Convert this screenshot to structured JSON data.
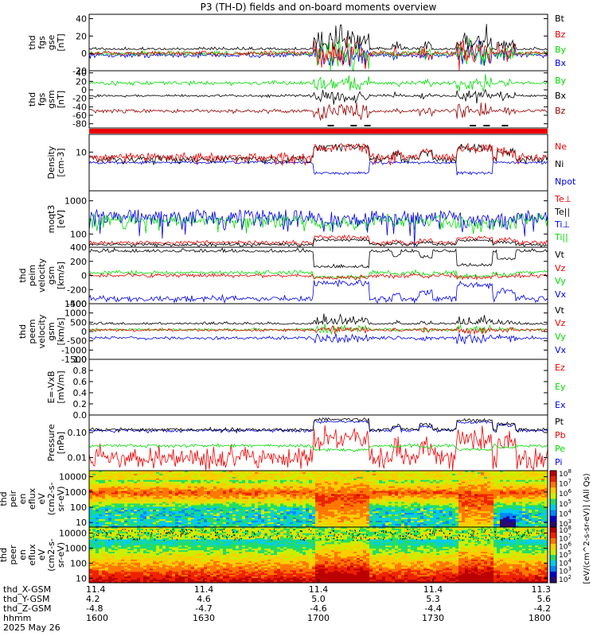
{
  "title": "P3 (TH-D) fields and on-board moments overview",
  "colors": {
    "black": "#000000",
    "red": "#ee0000",
    "green": "#00dd00",
    "blue": "#0000ee",
    "darkred": "#990000"
  },
  "chart_data": [
    {
      "type": "line",
      "ylabel_lines": [
        "thd",
        "fgs",
        "gse",
        "[nT]"
      ],
      "ylim": [
        -20,
        45
      ],
      "yticks": [
        "40",
        "20",
        "0",
        "-20"
      ],
      "legend": [
        {
          "label": "Bt",
          "color": "#000000"
        },
        {
          "label": "Bz",
          "color": "#ee0000"
        },
        {
          "label": "By",
          "color": "#00dd00"
        },
        {
          "label": "Bx",
          "color": "#0000ee"
        }
      ]
    },
    {
      "type": "line",
      "ylabel_lines": [
        "thd",
        "fgs",
        "gsm",
        "[nT]"
      ],
      "ylim": [
        -90,
        45
      ],
      "yticks": [
        "40",
        "20",
        "0",
        "-20",
        "-40",
        "-60",
        "-80"
      ],
      "legend": [
        {
          "label": "By",
          "color": "#00dd00"
        },
        {
          "label": "Bx",
          "color": "#000000"
        },
        {
          "label": "Bz",
          "color": "#990000"
        }
      ]
    },
    {
      "type": "line",
      "ylabel_lines": [
        "Density",
        "[cm-3]"
      ],
      "ylim": [
        0.2,
        60
      ],
      "log": true,
      "yticks": [
        "10"
      ],
      "legend": [
        {
          "label": "Ne",
          "color": "#ee0000"
        },
        {
          "label": "Ni",
          "color": "#000000"
        },
        {
          "label": "Npot",
          "color": "#0000ee"
        }
      ]
    },
    {
      "type": "line",
      "ylabel_lines": [
        "moqt3",
        "[eV]"
      ],
      "ylim": [
        40,
        2000
      ],
      "log": true,
      "yticks": [
        "1000",
        "100"
      ],
      "legend": [
        {
          "label": "Te⊥",
          "color": "#ee0000"
        },
        {
          "label": "Te||",
          "color": "#000000"
        },
        {
          "label": "Ti⊥",
          "color": "#0000ee"
        },
        {
          "label": "Ti||",
          "color": "#00dd00"
        }
      ]
    },
    {
      "type": "line",
      "ylabel_lines": [
        "thd",
        "peim",
        "velocity",
        "gsm",
        "[km/s]"
      ],
      "ylim": [
        -400,
        400
      ],
      "yticks": [
        "400",
        "200",
        "0",
        "-200",
        "-400"
      ],
      "legend": [
        {
          "label": "Vt",
          "color": "#000000"
        },
        {
          "label": "Vz",
          "color": "#ee0000"
        },
        {
          "label": "Vy",
          "color": "#00dd00"
        },
        {
          "label": "Vx",
          "color": "#0000ee"
        }
      ]
    },
    {
      "type": "line",
      "ylabel_lines": [
        "thd",
        "peem",
        "velocity",
        "gsm",
        "[km/s]"
      ],
      "ylim": [
        -1500,
        1500
      ],
      "yticks": [
        "1500",
        "1000",
        "500",
        "0",
        "-500",
        "-1000",
        "-1500"
      ],
      "legend": [
        {
          "label": "Vt",
          "color": "#000000"
        },
        {
          "label": "Vz",
          "color": "#ee0000"
        },
        {
          "label": "Vy",
          "color": "#00dd00"
        },
        {
          "label": "Vx",
          "color": "#0000ee"
        }
      ]
    },
    {
      "type": "line",
      "ylabel_lines": [
        "E=-VxB",
        "[mV/m]"
      ],
      "ylim": [
        0,
        1
      ],
      "yticks": [
        "1.0",
        "0.8",
        "0.6",
        "0.4",
        "0.2",
        "0.0"
      ],
      "legend": [
        {
          "label": "Ez",
          "color": "#ee0000"
        },
        {
          "label": "Ey",
          "color": "#00dd00"
        },
        {
          "label": "Ex",
          "color": "#0000ee"
        }
      ]
    },
    {
      "type": "line",
      "ylabel_lines": [
        "Pressure",
        "[nPa]"
      ],
      "ylim": [
        0.003,
        0.5
      ],
      "log": true,
      "yticks": [
        "0.10",
        "0.01"
      ],
      "legend": [
        {
          "label": "Pt",
          "color": "#000000"
        },
        {
          "label": "Pb",
          "color": "#ee0000"
        },
        {
          "label": "Pe",
          "color": "#00dd00"
        },
        {
          "label": "Pi",
          "color": "#0000ee"
        }
      ]
    },
    {
      "type": "heatmap",
      "ylabel_lines": [
        "thd",
        "peir",
        "en",
        "eflux",
        "eV",
        "(cm2-s-",
        "sr-eV)"
      ],
      "ylim": [
        5,
        25000
      ],
      "log": true,
      "yticks": [
        "10000",
        "1000",
        "100",
        "10"
      ]
    },
    {
      "type": "heatmap",
      "ylabel_lines": [
        "thd",
        "peer",
        "en",
        "eflux",
        "eV",
        "(cm2-s-",
        "sr-eV)"
      ],
      "ylim": [
        5,
        25000
      ],
      "log": true,
      "yticks": [
        "10000",
        "1000",
        "100",
        "10"
      ]
    }
  ],
  "colorbar": {
    "label": "[eV/(cm^2-s-sr-eV)] (All Qs)",
    "upper_ticks": [
      "10^8",
      "10^7",
      "10^6",
      "10^5",
      "10^4",
      "10^3"
    ],
    "lower_ticks": [
      "10^8",
      "10^7",
      "10^6",
      "10^5",
      "10^4",
      "10^3",
      "10^2"
    ]
  },
  "x_axis": {
    "row_labels": [
      "thd_X-GSM",
      "thd_Y-GSM",
      "thd_Z-GSM",
      "hhmm",
      "2025 May 26"
    ],
    "ticks": [
      {
        "x": "11.4",
        "y": "4.2",
        "z": "-4.8",
        "hhmm": "1600"
      },
      {
        "x": "11.4",
        "y": "4.6",
        "z": "-4.7",
        "hhmm": "1630"
      },
      {
        "x": "11.4",
        "y": "5.0",
        "z": "-4.6",
        "hhmm": "1700"
      },
      {
        "x": "11.4",
        "y": "5.3",
        "z": "-4.4",
        "hhmm": "1730"
      },
      {
        "x": "11.3",
        "y": "5.6",
        "z": "-4.2",
        "hhmm": "1800"
      }
    ]
  }
}
